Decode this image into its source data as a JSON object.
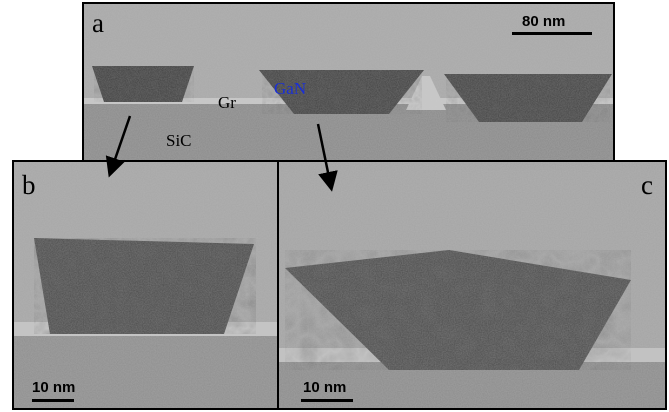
{
  "panels": {
    "a": {
      "label": "a",
      "scale_bar": "80 nm"
    },
    "b": {
      "label": "b",
      "scale_bar": "10 nm"
    },
    "c": {
      "label": "c",
      "scale_bar": "10 nm"
    }
  },
  "annotations": {
    "gan": "GaN",
    "gr": "Gr",
    "sic": "SiC"
  },
  "colors": {
    "gan_label": "#1a2fd6",
    "frame": "#000000",
    "tem_gray": "#8f8f8f"
  }
}
